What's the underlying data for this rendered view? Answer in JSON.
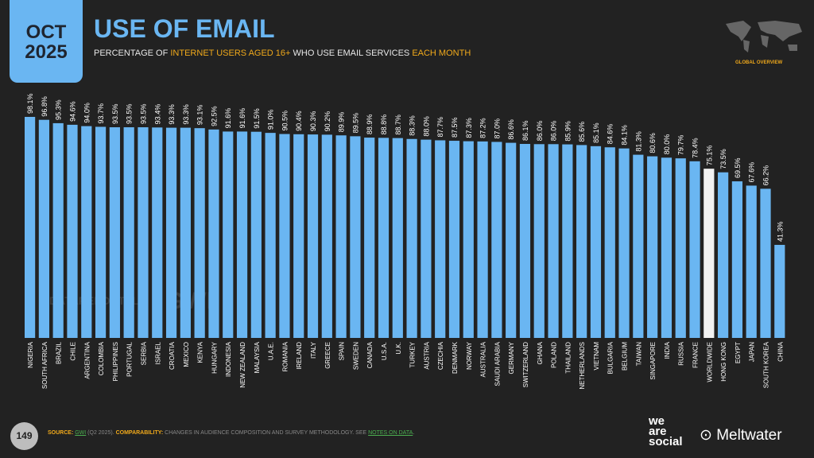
{
  "header": {
    "date_month": "OCT",
    "date_year": "2025",
    "title": "USE OF EMAIL",
    "subtitle_1": "PERCENTAGE OF ",
    "subtitle_2": "INTERNET USERS AGED 16+",
    "subtitle_3": " WHO USE EMAIL SERVICES ",
    "subtitle_4": "EACH MONTH",
    "region_label": "GLOBAL OVERVIEW"
  },
  "watermark": {
    "a": "DATAREPORTAL",
    "b": "GWI."
  },
  "footer": {
    "page": "149",
    "source_label": "SOURCE:",
    "source": "GWI",
    "source_period": " (Q2 2025). ",
    "comp_label": "COMPARABILITY:",
    "comp_text": " CHANGES IN AUDIENCE COMPOSITION AND SURVEY METHODOLOGY. SEE ",
    "notes_link": "NOTES ON DATA",
    "comp_end": "."
  },
  "brands": {
    "was": "we are social",
    "meltwater": "Meltwater"
  },
  "chart_data": {
    "type": "bar",
    "title": "",
    "xlabel": "",
    "ylabel": "",
    "ylim": [
      0,
      100
    ],
    "grid": false,
    "colors": {
      "bar": "#6ab6f2",
      "highlight": "#f2f2f2"
    },
    "highlight": "WORLDWIDE",
    "categories": [
      "NIGERIA",
      "SOUTH AFRICA",
      "BRAZIL",
      "CHILE",
      "ARGENTINA",
      "COLOMBIA",
      "PHILIPPINES",
      "PORTUGAL",
      "SERBIA",
      "ISRAEL",
      "CROATIA",
      "MEXICO",
      "KENYA",
      "HUNGARY",
      "INDONESIA",
      "NEW ZEALAND",
      "MALAYSIA",
      "U.A.E.",
      "ROMANIA",
      "IRELAND",
      "ITALY",
      "GREECE",
      "SPAIN",
      "SWEDEN",
      "CANADA",
      "U.S.A.",
      "U.K.",
      "TURKEY",
      "AUSTRIA",
      "CZECHIA",
      "DENMARK",
      "NORWAY",
      "AUSTRALIA",
      "SAUDI ARABIA",
      "GERMANY",
      "SWITZERLAND",
      "GHANA",
      "POLAND",
      "THAILAND",
      "NETHERLANDS",
      "VIETNAM",
      "BULGARIA",
      "BELGIUM",
      "TAIWAN",
      "SINGAPORE",
      "INDIA",
      "RUSSIA",
      "FRANCE",
      "WORLDWIDE",
      "HONG KONG",
      "EGYPT",
      "JAPAN",
      "SOUTH KOREA",
      "CHINA"
    ],
    "values": [
      98.1,
      96.8,
      95.3,
      94.6,
      94.0,
      93.7,
      93.5,
      93.5,
      93.5,
      93.4,
      93.3,
      93.3,
      93.1,
      92.5,
      91.6,
      91.6,
      91.5,
      91.0,
      90.5,
      90.4,
      90.3,
      90.2,
      89.9,
      89.5,
      88.9,
      88.8,
      88.7,
      88.3,
      88.0,
      87.7,
      87.5,
      87.3,
      87.2,
      87.0,
      86.6,
      86.1,
      86.0,
      86.0,
      85.9,
      85.6,
      85.1,
      84.6,
      84.1,
      81.3,
      80.6,
      80.0,
      79.7,
      78.4,
      75.1,
      73.5,
      69.5,
      67.6,
      66.2,
      41.3
    ]
  }
}
